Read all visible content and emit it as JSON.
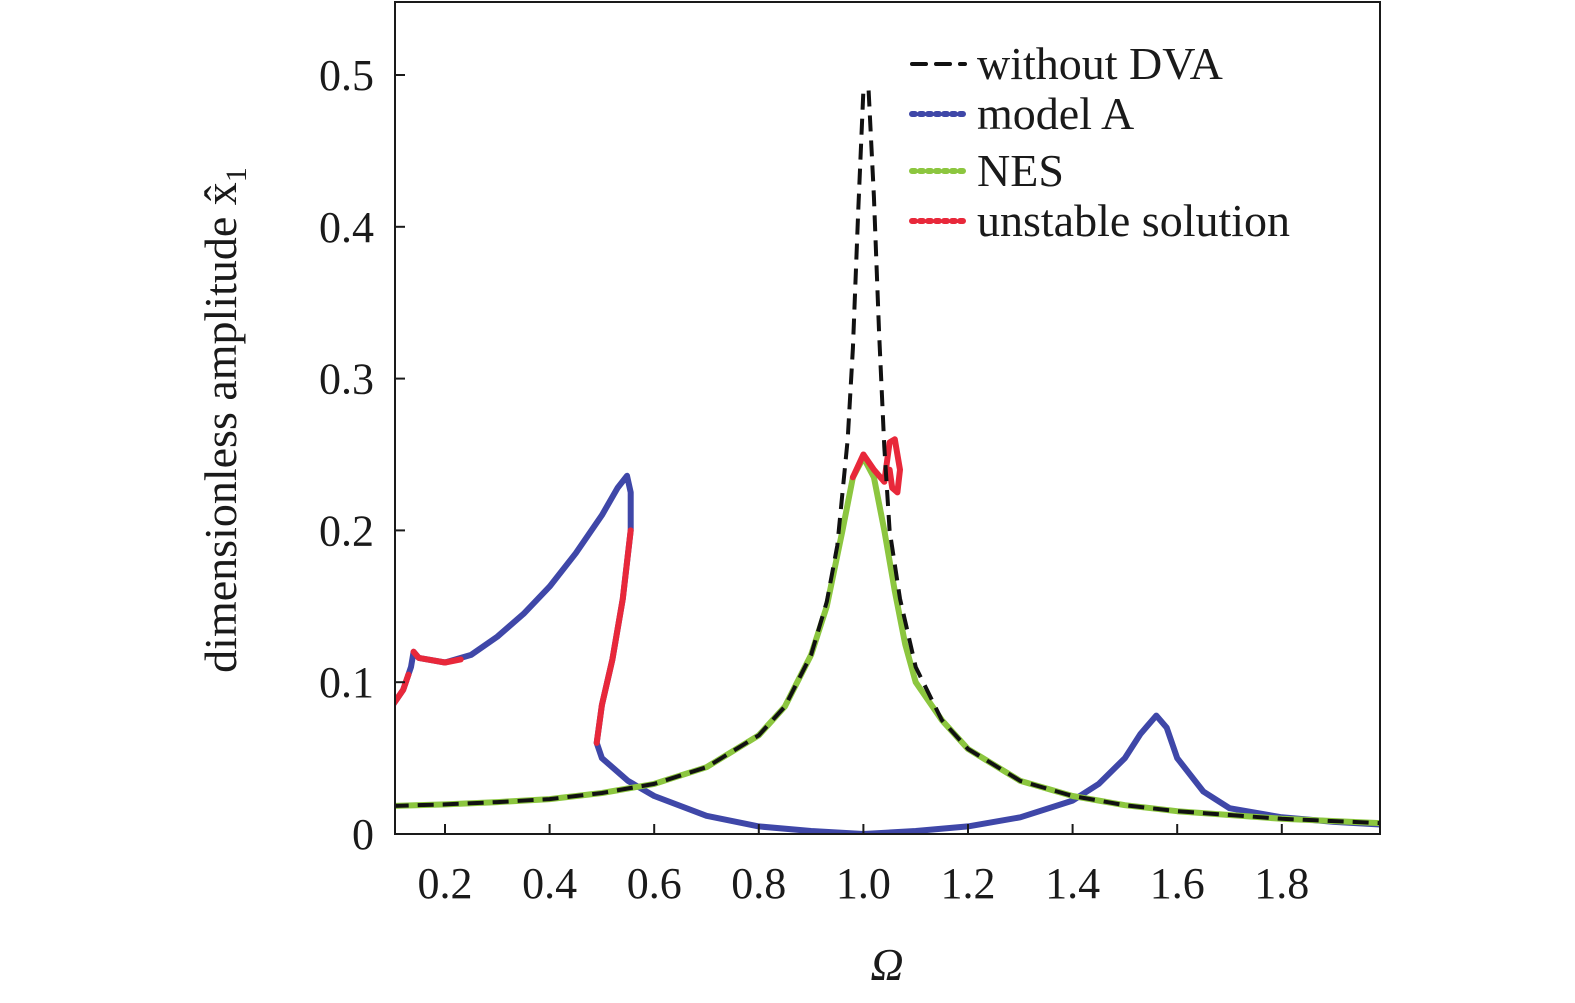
{
  "chart_data": {
    "type": "line",
    "xlabel": "Ω",
    "ylabel": "dimensionless amplitude x̂",
    "ylabel_sub": "1",
    "xlim": [
      0.1,
      2.0
    ],
    "ylim": [
      0,
      0.55
    ],
    "xticks": [
      {
        "v": 0.2,
        "label": "0.2"
      },
      {
        "v": 0.4,
        "label": "0.4"
      },
      {
        "v": 0.6,
        "label": "0.6"
      },
      {
        "v": 0.8,
        "label": "0.8"
      },
      {
        "v": 1.0,
        "label": "1.0"
      },
      {
        "v": 1.2,
        "label": "1.2"
      },
      {
        "v": 1.4,
        "label": "1.4"
      },
      {
        "v": 1.6,
        "label": "1.6"
      },
      {
        "v": 1.8,
        "label": "1.8"
      }
    ],
    "yticks": [
      {
        "v": 0,
        "label": "0"
      },
      {
        "v": 0.1,
        "label": "0.1"
      },
      {
        "v": 0.2,
        "label": "0.2"
      },
      {
        "v": 0.3,
        "label": "0.3"
      },
      {
        "v": 0.4,
        "label": "0.4"
      },
      {
        "v": 0.5,
        "label": "0.5"
      }
    ],
    "grid": false,
    "legend_position": "top-right",
    "series": [
      {
        "name": "without DVA",
        "color": "#111111",
        "style": "dashed",
        "points": [
          [
            0.1,
            0.0185
          ],
          [
            0.2,
            0.0195
          ],
          [
            0.3,
            0.021
          ],
          [
            0.4,
            0.023
          ],
          [
            0.5,
            0.027
          ],
          [
            0.6,
            0.033
          ],
          [
            0.7,
            0.044
          ],
          [
            0.8,
            0.065
          ],
          [
            0.85,
            0.084
          ],
          [
            0.9,
            0.118
          ],
          [
            0.93,
            0.153
          ],
          [
            0.95,
            0.19
          ],
          [
            0.97,
            0.26
          ],
          [
            0.98,
            0.32
          ],
          [
            0.99,
            0.41
          ],
          [
            1.0,
            0.49
          ],
          [
            1.01,
            0.49
          ],
          [
            1.02,
            0.42
          ],
          [
            1.03,
            0.33
          ],
          [
            1.04,
            0.255
          ],
          [
            1.05,
            0.2
          ],
          [
            1.07,
            0.155
          ],
          [
            1.1,
            0.11
          ],
          [
            1.15,
            0.075
          ],
          [
            1.2,
            0.056
          ],
          [
            1.3,
            0.035
          ],
          [
            1.4,
            0.025
          ],
          [
            1.5,
            0.019
          ],
          [
            1.6,
            0.015
          ],
          [
            1.8,
            0.01
          ],
          [
            2.0,
            0.007
          ]
        ]
      },
      {
        "name": "model A",
        "color": "#3f47a8",
        "style": "dotted",
        "points": [
          [
            0.1,
            0.085
          ],
          [
            0.12,
            0.095
          ],
          [
            0.135,
            0.11
          ],
          [
            0.14,
            0.12
          ],
          [
            0.15,
            0.116
          ],
          [
            0.2,
            0.113
          ],
          [
            0.25,
            0.118
          ],
          [
            0.3,
            0.13
          ],
          [
            0.35,
            0.145
          ],
          [
            0.4,
            0.163
          ],
          [
            0.45,
            0.185
          ],
          [
            0.5,
            0.21
          ],
          [
            0.53,
            0.228
          ],
          [
            0.548,
            0.236
          ],
          [
            0.555,
            0.225
          ],
          [
            0.555,
            0.2
          ],
          [
            0.54,
            0.155
          ],
          [
            0.52,
            0.115
          ],
          [
            0.5,
            0.085
          ],
          [
            0.49,
            0.06
          ],
          [
            0.5,
            0.05
          ],
          [
            0.55,
            0.035
          ],
          [
            0.6,
            0.025
          ],
          [
            0.7,
            0.012
          ],
          [
            0.8,
            0.005
          ],
          [
            0.9,
            0.002
          ],
          [
            1.0,
            0.0
          ],
          [
            1.1,
            0.002
          ],
          [
            1.2,
            0.005
          ],
          [
            1.3,
            0.011
          ],
          [
            1.4,
            0.022
          ],
          [
            1.45,
            0.033
          ],
          [
            1.5,
            0.05
          ],
          [
            1.53,
            0.066
          ],
          [
            1.56,
            0.078
          ],
          [
            1.58,
            0.07
          ],
          [
            1.6,
            0.05
          ],
          [
            1.65,
            0.028
          ],
          [
            1.7,
            0.017
          ],
          [
            1.8,
            0.011
          ],
          [
            1.9,
            0.008
          ],
          [
            2.0,
            0.006
          ]
        ]
      },
      {
        "name": "NES",
        "color": "#8cc63f",
        "style": "dotted",
        "points": [
          [
            0.1,
            0.0185
          ],
          [
            0.2,
            0.0195
          ],
          [
            0.3,
            0.021
          ],
          [
            0.4,
            0.023
          ],
          [
            0.5,
            0.027
          ],
          [
            0.6,
            0.033
          ],
          [
            0.7,
            0.044
          ],
          [
            0.8,
            0.065
          ],
          [
            0.85,
            0.084
          ],
          [
            0.9,
            0.118
          ],
          [
            0.93,
            0.15
          ],
          [
            0.96,
            0.2
          ],
          [
            0.98,
            0.235
          ],
          [
            1.0,
            0.248
          ],
          [
            1.02,
            0.235
          ],
          [
            1.04,
            0.2
          ],
          [
            1.06,
            0.16
          ],
          [
            1.08,
            0.125
          ],
          [
            1.1,
            0.1
          ],
          [
            1.15,
            0.075
          ],
          [
            1.2,
            0.056
          ],
          [
            1.3,
            0.035
          ],
          [
            1.4,
            0.025
          ],
          [
            1.5,
            0.019
          ],
          [
            1.6,
            0.015
          ],
          [
            1.8,
            0.01
          ],
          [
            2.0,
            0.007
          ]
        ]
      },
      {
        "name": "unstable solution",
        "color": "#e8283a",
        "style": "dotted",
        "segments": [
          [
            [
              0.1,
              0.085
            ],
            [
              0.12,
              0.095
            ],
            [
              0.13,
              0.105
            ]
          ],
          [
            [
              0.14,
              0.12
            ],
            [
              0.15,
              0.116
            ],
            [
              0.2,
              0.113
            ],
            [
              0.23,
              0.115
            ]
          ],
          [
            [
              0.555,
              0.2
            ],
            [
              0.54,
              0.155
            ],
            [
              0.52,
              0.115
            ],
            [
              0.5,
              0.085
            ],
            [
              0.49,
              0.06
            ]
          ],
          [
            [
              0.98,
              0.235
            ],
            [
              1.0,
              0.25
            ],
            [
              1.02,
              0.24
            ],
            [
              1.04,
              0.232
            ],
            [
              1.05,
              0.258
            ],
            [
              1.06,
              0.26
            ],
            [
              1.07,
              0.24
            ],
            [
              1.065,
              0.225
            ],
            [
              1.055,
              0.228
            ],
            [
              1.05,
              0.24
            ]
          ]
        ]
      }
    ]
  }
}
